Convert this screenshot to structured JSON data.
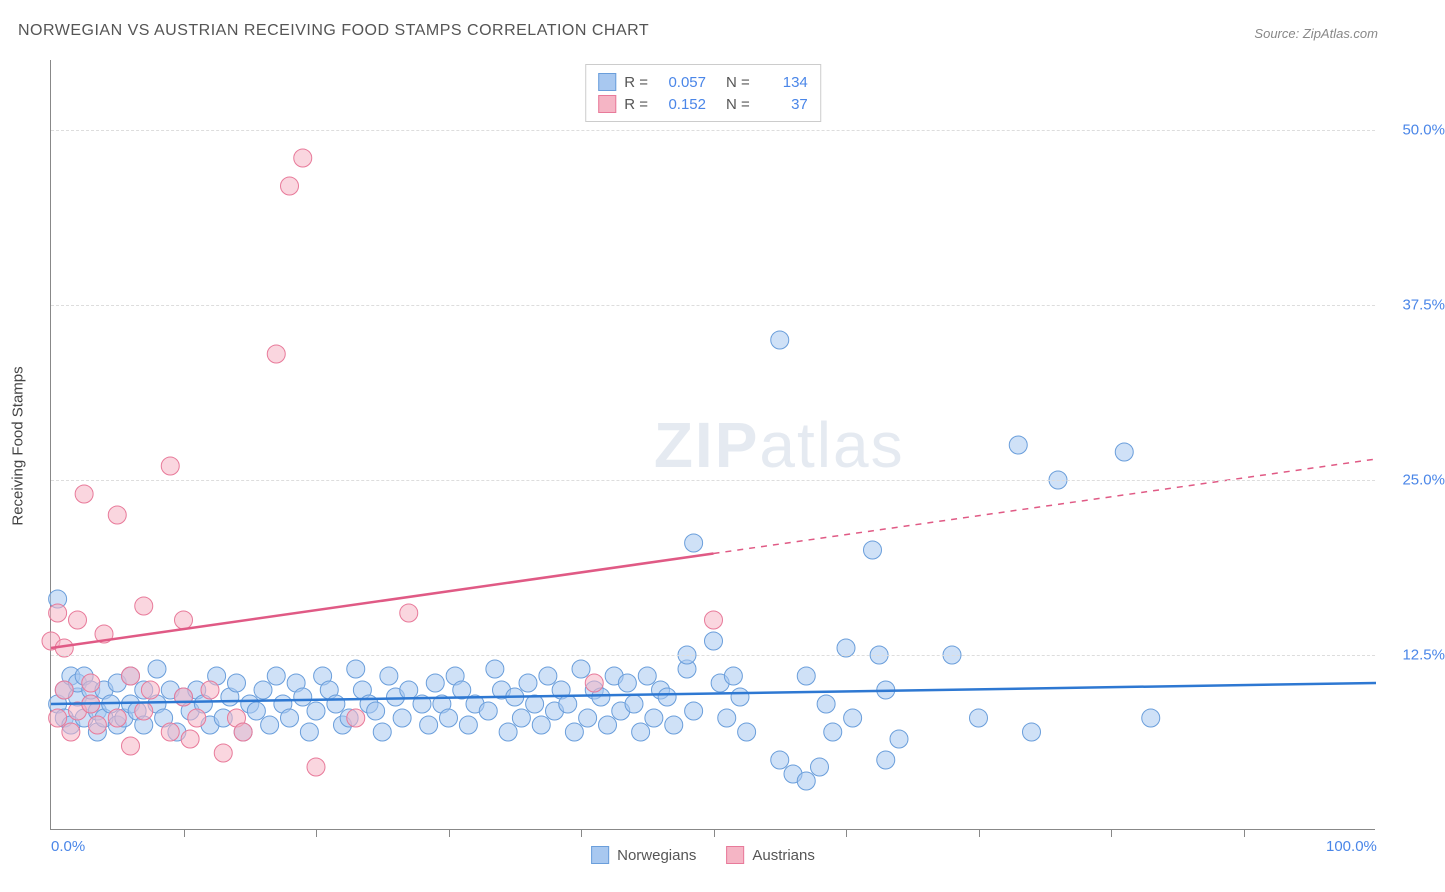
{
  "title": "NORWEGIAN VS AUSTRIAN RECEIVING FOOD STAMPS CORRELATION CHART",
  "source_label": "Source:",
  "source_value": "ZipAtlas.com",
  "y_axis_label": "Receiving Food Stamps",
  "watermark": {
    "part1": "ZIP",
    "part2": "atlas"
  },
  "chart": {
    "type": "scatter",
    "xlim": [
      0,
      100
    ],
    "ylim": [
      0,
      55
    ],
    "x_ticks_labeled": [
      {
        "pos": 0,
        "label": "0.0%"
      },
      {
        "pos": 100,
        "label": "100.0%"
      }
    ],
    "x_tick_marks": [
      10,
      20,
      30,
      40,
      50,
      60,
      70,
      80,
      90
    ],
    "y_ticks": [
      {
        "pos": 12.5,
        "label": "12.5%"
      },
      {
        "pos": 25.0,
        "label": "25.0%"
      },
      {
        "pos": 37.5,
        "label": "37.5%"
      },
      {
        "pos": 50.0,
        "label": "50.0%"
      }
    ],
    "grid_color": "#dddddd",
    "background_color": "#ffffff",
    "series": [
      {
        "name": "Norwegians",
        "fill_color": "#a8c8f0",
        "stroke_color": "#6a9edb",
        "fill_opacity": 0.55,
        "marker_radius": 9,
        "correlation_R": "0.057",
        "correlation_N": "134",
        "trend_line": {
          "x1": 0,
          "y1": 9.0,
          "x2": 100,
          "y2": 10.5,
          "color": "#2e78d2",
          "width": 2.5,
          "dashed_from_x": null
        },
        "points": [
          [
            0.5,
            9
          ],
          [
            0.5,
            16.5
          ],
          [
            1,
            10
          ],
          [
            1,
            8
          ],
          [
            1.5,
            11
          ],
          [
            1.5,
            7.5
          ],
          [
            2,
            9.5
          ],
          [
            2,
            10.5
          ],
          [
            2.5,
            8
          ],
          [
            2.5,
            11
          ],
          [
            3,
            9
          ],
          [
            3,
            10
          ],
          [
            3.5,
            8.5
          ],
          [
            3.5,
            7
          ],
          [
            4,
            10
          ],
          [
            4,
            8
          ],
          [
            4.5,
            9
          ],
          [
            5,
            7.5
          ],
          [
            5,
            10.5
          ],
          [
            5.5,
            8
          ],
          [
            6,
            11
          ],
          [
            6,
            9
          ],
          [
            6.5,
            8.5
          ],
          [
            7,
            10
          ],
          [
            7,
            7.5
          ],
          [
            8,
            11.5
          ],
          [
            8,
            9
          ],
          [
            8.5,
            8
          ],
          [
            9,
            10
          ],
          [
            9.5,
            7
          ],
          [
            10,
            9.5
          ],
          [
            10.5,
            8.5
          ],
          [
            11,
            10
          ],
          [
            11.5,
            9
          ],
          [
            12,
            7.5
          ],
          [
            12.5,
            11
          ],
          [
            13,
            8
          ],
          [
            13.5,
            9.5
          ],
          [
            14,
            10.5
          ],
          [
            14.5,
            7
          ],
          [
            15,
            9
          ],
          [
            15.5,
            8.5
          ],
          [
            16,
            10
          ],
          [
            16.5,
            7.5
          ],
          [
            17,
            11
          ],
          [
            17.5,
            9
          ],
          [
            18,
            8
          ],
          [
            18.5,
            10.5
          ],
          [
            19,
            9.5
          ],
          [
            19.5,
            7
          ],
          [
            20,
            8.5
          ],
          [
            20.5,
            11
          ],
          [
            21,
            10
          ],
          [
            21.5,
            9
          ],
          [
            22,
            7.5
          ],
          [
            22.5,
            8
          ],
          [
            23,
            11.5
          ],
          [
            23.5,
            10
          ],
          [
            24,
            9
          ],
          [
            24.5,
            8.5
          ],
          [
            25,
            7
          ],
          [
            25.5,
            11
          ],
          [
            26,
            9.5
          ],
          [
            26.5,
            8
          ],
          [
            27,
            10
          ],
          [
            28,
            9
          ],
          [
            28.5,
            7.5
          ],
          [
            29,
            10.5
          ],
          [
            29.5,
            9
          ],
          [
            30,
            8
          ],
          [
            30.5,
            11
          ],
          [
            31,
            10
          ],
          [
            31.5,
            7.5
          ],
          [
            32,
            9
          ],
          [
            33,
            8.5
          ],
          [
            33.5,
            11.5
          ],
          [
            34,
            10
          ],
          [
            34.5,
            7
          ],
          [
            35,
            9.5
          ],
          [
            35.5,
            8
          ],
          [
            36,
            10.5
          ],
          [
            36.5,
            9
          ],
          [
            37,
            7.5
          ],
          [
            37.5,
            11
          ],
          [
            38,
            8.5
          ],
          [
            38.5,
            10
          ],
          [
            39,
            9
          ],
          [
            39.5,
            7
          ],
          [
            40,
            11.5
          ],
          [
            40.5,
            8
          ],
          [
            41,
            10
          ],
          [
            41.5,
            9.5
          ],
          [
            42,
            7.5
          ],
          [
            42.5,
            11
          ],
          [
            43,
            8.5
          ],
          [
            43.5,
            10.5
          ],
          [
            44,
            9
          ],
          [
            44.5,
            7
          ],
          [
            45,
            11
          ],
          [
            45.5,
            8
          ],
          [
            46,
            10
          ],
          [
            46.5,
            9.5
          ],
          [
            47,
            7.5
          ],
          [
            48,
            11.5
          ],
          [
            48.5,
            20.5
          ],
          [
            48,
            12.5
          ],
          [
            48.5,
            8.5
          ],
          [
            50,
            13.5
          ],
          [
            50.5,
            10.5
          ],
          [
            51,
            8
          ],
          [
            51.5,
            11
          ],
          [
            52,
            9.5
          ],
          [
            52.5,
            7
          ],
          [
            55,
            35
          ],
          [
            55,
            5
          ],
          [
            56,
            4
          ],
          [
            57,
            11
          ],
          [
            57,
            3.5
          ],
          [
            58,
            4.5
          ],
          [
            58.5,
            9
          ],
          [
            59,
            7
          ],
          [
            60,
            13
          ],
          [
            60.5,
            8
          ],
          [
            62,
            20
          ],
          [
            62.5,
            12.5
          ],
          [
            63,
            10
          ],
          [
            63,
            5
          ],
          [
            64,
            6.5
          ],
          [
            68,
            12.5
          ],
          [
            70,
            8
          ],
          [
            73,
            27.5
          ],
          [
            74,
            7
          ],
          [
            76,
            25
          ],
          [
            81,
            27
          ],
          [
            83,
            8
          ]
        ]
      },
      {
        "name": "Austrians",
        "fill_color": "#f5b5c5",
        "stroke_color": "#e87a9a",
        "fill_opacity": 0.55,
        "marker_radius": 9,
        "correlation_R": "0.152",
        "correlation_N": "37",
        "trend_line": {
          "x1": 0,
          "y1": 13.0,
          "x2": 100,
          "y2": 26.5,
          "color": "#e05a85",
          "width": 2.5,
          "dashed_from_x": 50
        },
        "points": [
          [
            0,
            13.5
          ],
          [
            0.5,
            15.5
          ],
          [
            0.5,
            8
          ],
          [
            1,
            10
          ],
          [
            1,
            13
          ],
          [
            1.5,
            7
          ],
          [
            2,
            8.5
          ],
          [
            2,
            15
          ],
          [
            2.5,
            24
          ],
          [
            3,
            9
          ],
          [
            3,
            10.5
          ],
          [
            3.5,
            7.5
          ],
          [
            4,
            14
          ],
          [
            5,
            22.5
          ],
          [
            5,
            8
          ],
          [
            6,
            11
          ],
          [
            6,
            6
          ],
          [
            7,
            16
          ],
          [
            7,
            8.5
          ],
          [
            7.5,
            10
          ],
          [
            9,
            26
          ],
          [
            9,
            7
          ],
          [
            10,
            9.5
          ],
          [
            10,
            15
          ],
          [
            10.5,
            6.5
          ],
          [
            11,
            8
          ],
          [
            12,
            10
          ],
          [
            13,
            5.5
          ],
          [
            14,
            8
          ],
          [
            14.5,
            7
          ],
          [
            17,
            34
          ],
          [
            18,
            46
          ],
          [
            19,
            48
          ],
          [
            20,
            4.5
          ],
          [
            23,
            8
          ],
          [
            27,
            15.5
          ],
          [
            41,
            10.5
          ],
          [
            50,
            15
          ]
        ]
      }
    ]
  },
  "legend_bottom": [
    {
      "label": "Norwegians",
      "fill": "#a8c8f0",
      "stroke": "#6a9edb"
    },
    {
      "label": "Austrians",
      "fill": "#f5b5c5",
      "stroke": "#e87a9a"
    }
  ],
  "legend_top_labels": {
    "R": "R =",
    "N": "N ="
  }
}
